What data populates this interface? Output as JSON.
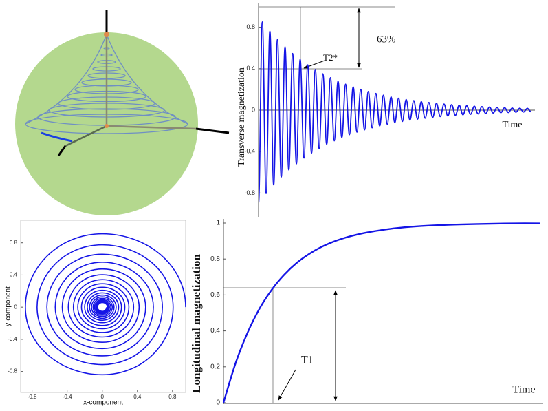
{
  "chart_data": [
    {
      "type": "oscillation",
      "y_label": "Transverse magnetization",
      "x_label": "Time",
      "annotations": [
        "T2*",
        "63%"
      ],
      "x": [
        0,
        1,
        2,
        3,
        4,
        5,
        6,
        7,
        8,
        9,
        10,
        11,
        12,
        13,
        14,
        15,
        16,
        17,
        18,
        19,
        20,
        21,
        22,
        23,
        24,
        25,
        26,
        27,
        28,
        29,
        30,
        31,
        32,
        33,
        34,
        35,
        36,
        37,
        38,
        39,
        40,
        41,
        42,
        43,
        44,
        45,
        46,
        47,
        48,
        49,
        50,
        51,
        52,
        53,
        54,
        55,
        56,
        57,
        58,
        59,
        60,
        61,
        62,
        63,
        64,
        65,
        66,
        67,
        68,
        69,
        70,
        71,
        72
      ],
      "series": [
        {
          "color": "#1414e6",
          "values": [
            -0.9,
            0.851,
            -0.805,
            0.762,
            -0.721,
            0.682,
            -0.645,
            0.61,
            -0.577,
            0.546,
            -0.517,
            0.489,
            -0.462,
            0.437,
            -0.414,
            0.391,
            -0.37,
            0.35,
            -0.331,
            0.313,
            -0.296,
            0.28,
            -0.265,
            0.251,
            -0.237,
            0.224,
            -0.212,
            0.201,
            -0.19,
            0.18,
            -0.17,
            0.161,
            -0.152,
            0.144,
            -0.136,
            0.129,
            -0.122,
            0.115,
            -0.109,
            0.103,
            -0.097,
            0.092,
            -0.087,
            0.082,
            -0.078,
            0.074,
            -0.07,
            0.066,
            -0.062,
            0.059,
            -0.056,
            0.053,
            -0.05,
            0.047,
            -0.045,
            0.042,
            -0.04,
            0.038,
            -0.036,
            0.034,
            -0.032,
            0.03,
            -0.028,
            0.027,
            -0.025,
            0.024,
            -0.023,
            0.021,
            -0.02,
            0.019,
            -0.018,
            0.017,
            -0.016
          ]
        }
      ],
      "xlim": [
        0,
        73
      ],
      "ylim": [
        -1.03,
        1.03
      ],
      "yticks": [
        -0.8,
        -0.4,
        0,
        0.4,
        0.8
      ]
    },
    {
      "type": "spiral",
      "x_label": "x-component",
      "y_label": "y-component",
      "annotations": [],
      "x": [
        0.95,
        0,
        -0.876,
        0,
        0.807,
        0,
        -0.743,
        0,
        0.685,
        0,
        -0.631,
        0,
        0.582,
        0,
        -0.536,
        0,
        0.494,
        0,
        -0.456,
        0,
        0.42,
        0,
        -0.387,
        0,
        0.357,
        0,
        -0.329,
        0,
        0.303,
        0,
        -0.279,
        0,
        0.257,
        0,
        -0.237,
        0,
        0.219,
        0,
        -0.201,
        0,
        0.186,
        0,
        -0.171,
        0,
        0.158,
        0,
        -0.145,
        0,
        0.134,
        0,
        -0.123,
        0,
        0.114,
        0,
        -0.105,
        0,
        0.097,
        0,
        -0.089,
        0,
        0.082,
        0,
        -0.076,
        0,
        0.07,
        0,
        -0.064,
        0,
        0.059,
        0,
        -0.055,
        0,
        0.05
      ],
      "series": [
        {
          "color": "#1414e6",
          "values": [
            0,
            0.912,
            0,
            -0.84,
            0,
            0.775,
            0,
            -0.714,
            0,
            0.658,
            0,
            -0.606,
            0,
            0.559,
            0,
            -0.515,
            0,
            0.475,
            0,
            -0.437,
            0,
            0.403,
            0,
            -0.371,
            0,
            0.342,
            0,
            -0.315,
            0,
            0.291,
            0,
            -0.268,
            0,
            0.247,
            0,
            -0.228,
            0,
            0.21,
            0,
            -0.193,
            0,
            0.178,
            0,
            -0.164,
            0,
            0.151,
            0,
            -0.139,
            0,
            0.128,
            0,
            -0.118,
            0,
            0.109,
            0,
            -0.101,
            0,
            0.093,
            0,
            -0.086,
            0,
            0.079,
            0,
            -0.073,
            0,
            0.067,
            0,
            -0.062,
            0,
            0.057,
            0,
            -0.052,
            0
          ]
        }
      ],
      "xlim": [
        -0.93,
        0.95
      ],
      "ylim": [
        -1.06,
        1.08
      ],
      "xticks": [
        -0.8,
        -0.4,
        0,
        0.4,
        0.8
      ],
      "yticks": [
        -0.8,
        -0.4,
        0,
        0.4,
        0.8
      ]
    },
    {
      "type": "line",
      "y_label": "Longitudinal magnetization",
      "x_label": "Time",
      "annotations": [
        "T1"
      ],
      "x": [
        0,
        0.25,
        0.5,
        0.75,
        1,
        1.25,
        1.5,
        1.75,
        2,
        2.25,
        2.5,
        2.75,
        3,
        3.5,
        4,
        4.5,
        5,
        5.5,
        6,
        6.5
      ],
      "series": [
        {
          "color": "#1414e6",
          "values": [
            0,
            0.221,
            0.393,
            0.528,
            0.632,
            0.713,
            0.777,
            0.826,
            0.865,
            0.895,
            0.918,
            0.936,
            0.95,
            0.97,
            0.982,
            0.989,
            0.993,
            0.996,
            0.998,
            0.998
          ]
        }
      ],
      "xlim": [
        0,
        6.5
      ],
      "ylim": [
        0,
        1
      ],
      "yticks": [
        0,
        0.2,
        0.4,
        0.6,
        0.8,
        1
      ]
    }
  ]
}
